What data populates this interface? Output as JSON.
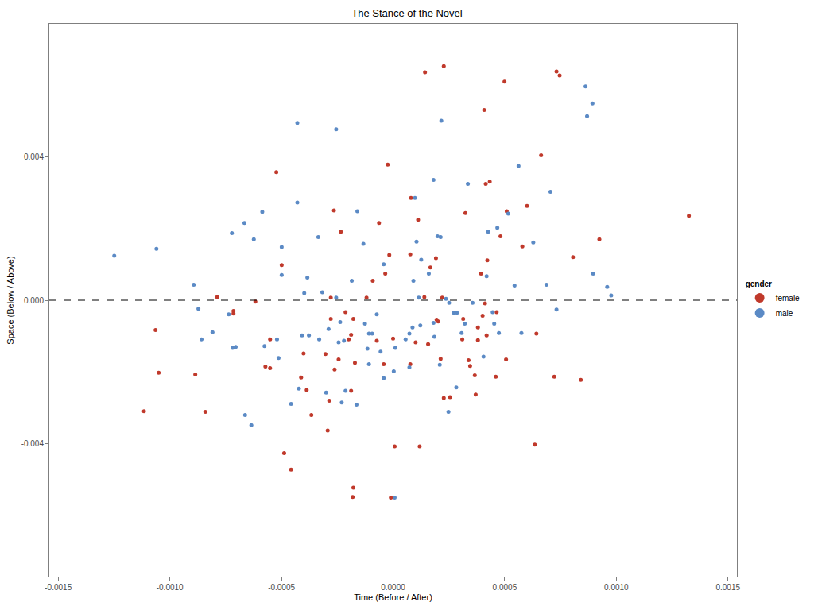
{
  "chart_data": {
    "type": "scatter",
    "title": "The Stance of the Novel",
    "x_label": "Time (Before / After)",
    "y_label": "Space (Below / Above)",
    "legend_title": "gender",
    "legend": "right",
    "grid": false,
    "marker": "circle",
    "xlim": [
      -0.00154,
      0.00154
    ],
    "ylim": [
      -0.0077,
      0.0077
    ],
    "xticks": [
      -0.0015,
      {
        "value": -0.001,
        "label": "-0.0010"
      },
      -0.0005,
      {
        "value": 0,
        "label": "0.0000"
      },
      0.0005,
      {
        "value": 0.001,
        "label": "0.0010"
      },
      0.0015
    ],
    "yticks": [
      -0.004,
      {
        "value": 0,
        "label": "0.000"
      },
      0.004
    ],
    "reference_lines": {
      "x": [
        0
      ],
      "y": [
        0
      ]
    },
    "series": [
      {
        "name": "female",
        "color": "#c0392b",
        "x": [
          0.000143,
          0.000227,
          0.000499,
          0.000732,
          0.000746,
          0.000408,
          0.001325,
          0.000663,
          -2.4e-05,
          -0.000523,
          0.000433,
          0.000415,
          8e-05,
          0.0006,
          0.000509,
          0.000324,
          0.000112,
          -0.000265,
          -6.3e-05,
          -0.000234,
          7.7e-05,
          0.000579,
          0.000481,
          0.000806,
          0.000924,
          -1.7e-05,
          0.000192,
          0.000422,
          -0.000499,
          0.000167,
          0.000394,
          -3.5e-05,
          -9.1e-05,
          -0.000788,
          -0.000617,
          0.00014,
          0.00022,
          -0.000279,
          -0.000119,
          0.000412,
          -0.000715,
          -0.000715,
          -0.001064,
          -0.000213,
          -0.000279,
          -0.000178,
          0.000464,
          0.000195,
          0.000202,
          0.000314,
          0.00038,
          -0.000188,
          -0.000199,
          -7.3e-05,
          0,
          0.000101,
          0.000157,
          0.00031,
          0.00038,
          0.000419,
          0.000642,
          -0.000551,
          -0.000303,
          -0.000401,
          -0.000244,
          -0.000572,
          -0.000551,
          -0.000171,
          -4.2e-05,
          7.7e-05,
          0.000213,
          0.000338,
          0.000345,
          0.000506,
          -0.00105,
          -0.000886,
          -0.000412,
          -0.000262,
          -0.000387,
          -0.000188,
          0.000366,
          0.00046,
          0.000722,
          0.000841,
          -0.000286,
          0.000227,
          0.000255,
          0.00037,
          -0.000366,
          -0.000841,
          -0.001116,
          -0.000293,
          -0.000488,
          -0.000457,
          -0.000178,
          -0.000181,
          -1e-05,
          7e-06,
          0.000119,
          0.000635,
          0.000401
        ],
        "values": [
          0.00635,
          0.00652,
          0.00609,
          0.00637,
          0.00626,
          0.0053,
          0.00235,
          0.00404,
          0.00378,
          0.00357,
          0.0033,
          0.00324,
          0.00285,
          0.00263,
          0.00248,
          0.00243,
          0.00224,
          0.0025,
          0.00215,
          0.00191,
          0.00128,
          0.0015,
          0.00178,
          0.0012,
          0.0017,
          0.00126,
          0.00117,
          0.00111,
          0.00098,
          0.00091,
          0.00074,
          0.00074,
          0.00054,
          9e-05,
          -4e-05,
          9e-05,
          7e-05,
          7e-05,
          7e-05,
          -9e-05,
          -0.0003,
          -0.00037,
          -0.00083,
          -0.00033,
          -0.00052,
          -0.00052,
          -0.00033,
          -0.00054,
          -0.00059,
          -0.00052,
          -0.00076,
          -0.00096,
          -0.00109,
          -0.00113,
          -0.00107,
          -0.00117,
          -0.00122,
          -0.00109,
          -0.00111,
          -0.00098,
          -0.00093,
          -0.00109,
          -0.0015,
          -0.00148,
          -0.00165,
          -0.00185,
          -0.00189,
          -0.00174,
          -0.00178,
          -0.00178,
          -0.00163,
          -0.00167,
          -0.00183,
          -0.00165,
          -0.00202,
          -0.00207,
          -0.00215,
          -0.00193,
          -0.0025,
          -0.00252,
          -0.00209,
          -0.00213,
          -0.00213,
          -0.00222,
          -0.0028,
          -0.00272,
          -0.0027,
          -0.00263,
          -0.0032,
          -0.00311,
          -0.00309,
          -0.00363,
          -0.00426,
          -0.00472,
          -0.00522,
          -0.00548,
          -0.0055,
          -0.00407,
          -0.00407,
          -0.00402,
          -0.00043
        ]
      },
      {
        "name": "male",
        "color": "#5b8ac5",
        "x": [
          0.000862,
          0.000893,
          0.000869,
          0.000216,
          -0.000429,
          -0.000255,
          0.000562,
          0.000181,
          0.000335,
          0.000705,
          9.8e-05,
          -0.000429,
          -0.00016,
          -0.000586,
          -0.000666,
          0.000516,
          0.000467,
          -0.000722,
          -0.000624,
          -0.000335,
          -0.00106,
          -0.001249,
          -0.000499,
          -0.000133,
          0.000426,
          0.000628,
          0.000105,
          0.000199,
          0.000213,
          -4.2e-05,
          0.000126,
          -0.000499,
          -0.000384,
          -0.000185,
          -0.000893,
          0.00016,
          0.000419,
          9.1e-05,
          0.000544,
          0.000687,
          0.000896,
          0.000959,
          0.000977,
          -0.000398,
          -0.000317,
          -0.000255,
          0.000115,
          0.000237,
          0.000251,
          0.000356,
          0.000446,
          -0.000872,
          -0.000736,
          -7.3e-05,
          -0.000809,
          -0.000858,
          0.000732,
          0.000272,
          0.000286,
          0.000321,
          0.000181,
          -0.000237,
          -0.000126,
          -9.4e-05,
          -0.000108,
          -0.000289,
          -0.000408,
          -0.000377,
          -0.000331,
          -0.000244,
          -0.00022,
          5.6e-05,
          8.7e-05,
          7.3e-05,
          0.000122,
          0.000185,
          0.000307,
          0.000453,
          0.000474,
          0.000575,
          -0.000115,
          -5.6e-05,
          1e-05,
          -0.00052,
          -0.000576,
          -0.000513,
          -0.000108,
          3e-06,
          7.3e-05,
          0.000209,
          0.000405,
          -0.000719,
          -0.000705,
          -0.000422,
          -0.0003,
          -0.000213,
          -4.2e-05,
          0.000283,
          0.000248,
          -0.000164,
          -0.00023,
          -0.000457,
          -0.000663,
          -0.000635,
          7e-06
        ],
        "values": [
          0.00596,
          0.00548,
          0.00513,
          0.005,
          0.00494,
          0.00476,
          0.00374,
          0.00335,
          0.00324,
          0.00302,
          0.00285,
          0.00272,
          0.00248,
          0.00246,
          0.00215,
          0.00241,
          0.00202,
          0.00187,
          0.0017,
          0.00176,
          0.00143,
          0.00124,
          0.00148,
          0.00157,
          0.00191,
          0.00161,
          0.00163,
          0.00178,
          0.00176,
          0.001,
          0.00113,
          0.0007,
          0.00063,
          0.00054,
          0.00043,
          0.00074,
          0.00067,
          0.00054,
          0.00041,
          0.00043,
          0.00074,
          0.00037,
          0.00013,
          0.0002,
          0.00022,
          7e-05,
          7e-05,
          4e-05,
          -7e-05,
          -7e-05,
          -0.00033,
          -0.00024,
          -0.00039,
          -0.00039,
          -0.00089,
          -0.00109,
          -0.00026,
          -0.00035,
          -0.00035,
          -0.00065,
          -0.00063,
          -0.00061,
          -0.00065,
          -0.00093,
          -0.00093,
          -0.0008,
          -0.00098,
          -0.00098,
          -0.00109,
          -0.00117,
          -0.00113,
          -0.00109,
          -0.00076,
          -0.00093,
          -0.0007,
          -0.00102,
          -0.00091,
          -0.00065,
          -0.00091,
          -0.00091,
          -0.00135,
          -0.00143,
          -0.00133,
          -0.00109,
          -0.00128,
          -0.00161,
          -0.00178,
          -0.00198,
          -0.00187,
          -0.0018,
          -0.00157,
          -0.00133,
          -0.0013,
          -0.00246,
          -0.00257,
          -0.00252,
          -0.00217,
          -0.00243,
          -0.00311,
          -0.00291,
          -0.00285,
          -0.00289,
          -0.0032,
          -0.00348,
          -0.0055
        ]
      }
    ]
  }
}
